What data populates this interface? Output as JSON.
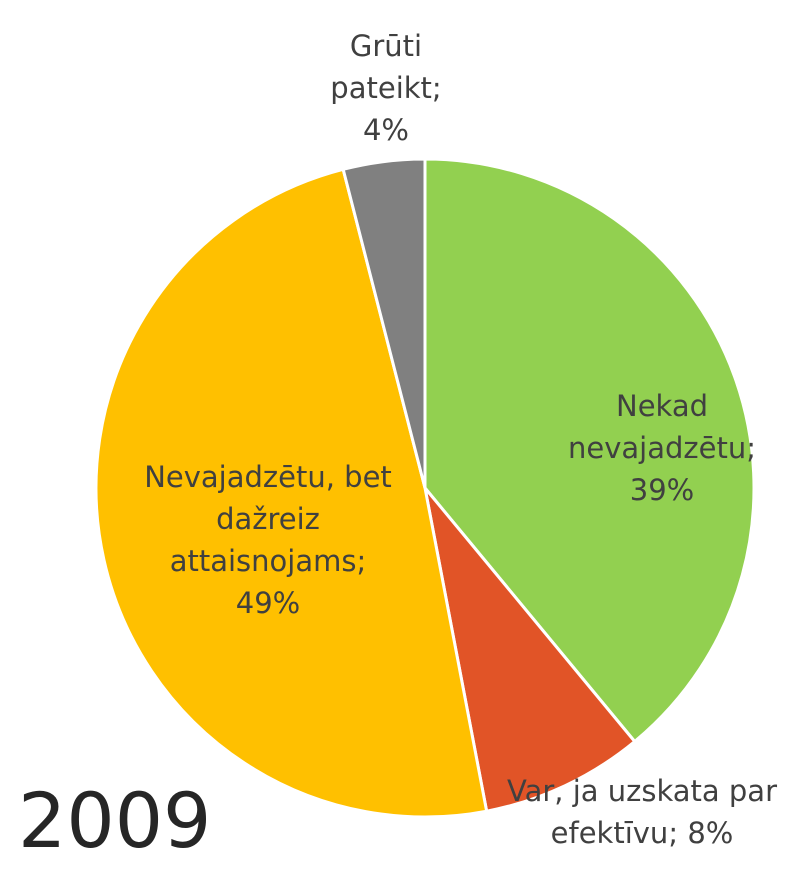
{
  "chart_data": {
    "type": "pie",
    "title": "2009",
    "categories": [
      "Nekad nevajadzētu",
      "Var, ja uzskata par efektīvu",
      "Nevajadzētu, bet dažreiz attaisnojams",
      "Grūti pateikt"
    ],
    "values": [
      39,
      8,
      49,
      4
    ],
    "value_labels": [
      "39%",
      "8%",
      "49%",
      "4%"
    ],
    "separator": ";",
    "colors": [
      "#92d050",
      "#e15427",
      "#ffc000",
      "#808080"
    ]
  }
}
